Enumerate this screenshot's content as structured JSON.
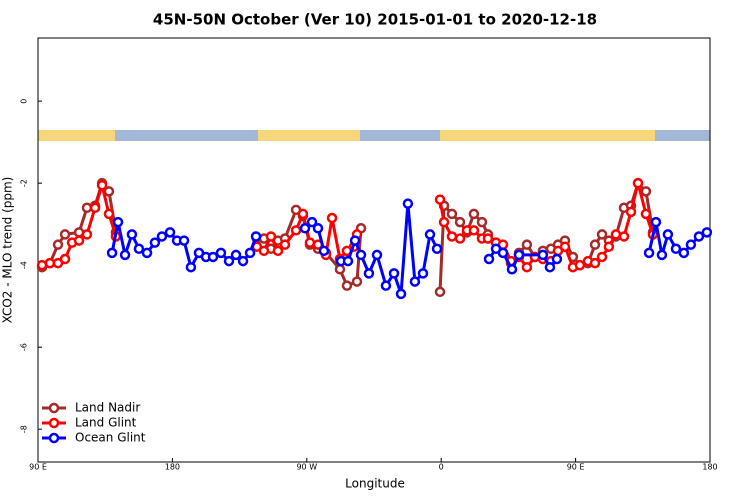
{
  "chart_data": {
    "type": "line",
    "title": "45N-50N October (Ver 10)   2015-01-01 to 2020-12-18",
    "x_label": "Longitude",
    "y_label": "XCO2 - MLO trend (ppm)",
    "xlim": [
      90,
      540
    ],
    "ylim": [
      -8.8,
      1.54
    ],
    "xticks": [
      {
        "value": 90,
        "label": "90 E"
      },
      180,
      {
        "value": 270,
        "label": "90 W"
      },
      {
        "value": 360,
        "label": "0"
      },
      {
        "value": 450,
        "label": "90 E"
      },
      {
        "value": 540,
        "label": "180"
      }
    ],
    "yticks": [
      0,
      -2,
      -4,
      -6,
      -8
    ],
    "legend": "bottom-left",
    "series": [
      {
        "name": "Land Nadir",
        "color": "#a52a2a",
        "x": [
          92.7,
          98.0,
          103.4,
          108.1,
          117.5,
          122.8,
          128.2,
          132.9,
          137.5,
          142.2,
          null,
          236.6,
          241.3,
          246.0,
          250.7,
          255.4,
          262.8,
          267.4,
          272.1,
          277.5,
          282.8,
          292.2,
          296.9,
          303.6,
          306.3,
          null,
          359.2,
          361.9,
          367.2,
          372.6,
          377.3,
          381.9,
          387.3,
          391.3,
          396.7,
          401.4,
          406.7,
          412.1,
          417.4,
          422.8,
          428.1,
          433.5,
          438.2,
          442.9,
          448.2,
          452.9,
          458.3,
          463.0,
          467.7,
          472.3,
          477.0,
          482.4,
          487.1,
          491.8,
          497.1,
          501.8
        ],
        "values": [
          -4.05,
          -3.95,
          -3.5,
          -3.25,
          -3.2,
          -2.6,
          -2.55,
          -2.0,
          -2.2,
          -3.2,
          null,
          -3.35,
          -3.35,
          -3.6,
          -3.4,
          -3.35,
          -2.65,
          -2.8,
          -3.5,
          -3.6,
          -3.7,
          -4.1,
          -4.5,
          -4.4,
          -3.1,
          null,
          -4.65,
          -2.55,
          -2.75,
          -2.95,
          -3.2,
          -2.75,
          -2.95,
          -3.25,
          -3.45,
          -3.7,
          -3.95,
          -3.7,
          -3.5,
          -3.8,
          -3.65,
          -3.6,
          -3.5,
          -3.4,
          -3.8,
          -4.0,
          -3.95,
          -3.5,
          -3.25,
          -3.4,
          -3.3,
          -2.6,
          -2.55,
          -2.0,
          -2.2,
          -3.2
        ]
      },
      {
        "name": "Land Glint",
        "color": "#ff0000",
        "x": [
          92.7,
          98.0,
          103.4,
          108.1,
          112.8,
          117.5,
          122.8,
          128.2,
          132.9,
          137.5,
          142.2,
          null,
          236.6,
          241.3,
          246.0,
          250.7,
          255.4,
          262.8,
          267.4,
          272.1,
          277.5,
          282.8,
          286.9,
          292.2,
          296.9,
          301.6,
          303.6,
          null,
          359.2,
          361.9,
          367.2,
          372.6,
          377.3,
          381.9,
          387.3,
          391.3,
          396.7,
          401.4,
          406.7,
          412.1,
          417.4,
          422.8,
          428.1,
          433.5,
          438.2,
          442.9,
          448.2,
          452.9,
          458.3,
          463.0,
          467.7,
          472.3,
          477.0,
          482.4,
          487.1,
          491.8,
          497.1,
          501.8
        ],
        "values": [
          -4.0,
          -3.95,
          -3.95,
          -3.85,
          -3.45,
          -3.4,
          -3.25,
          -2.6,
          -2.05,
          -2.75,
          -3.3,
          null,
          -3.55,
          -3.65,
          -3.3,
          -3.65,
          -3.5,
          -3.15,
          -2.75,
          -3.45,
          -3.5,
          -3.75,
          -2.85,
          -3.85,
          -3.65,
          -3.55,
          -3.25,
          null,
          -2.4,
          -2.95,
          -3.3,
          -3.35,
          -3.15,
          -3.15,
          -3.35,
          -3.35,
          -3.45,
          -3.5,
          -3.9,
          -3.8,
          -4.05,
          -3.8,
          -3.85,
          -3.9,
          -3.65,
          -3.55,
          -4.05,
          -4.0,
          -3.9,
          -3.95,
          -3.8,
          -3.55,
          -3.25,
          -3.3,
          -2.7,
          -2.0,
          -2.75,
          -3.25
        ]
      },
      {
        "name": "Ocean Glint",
        "color": "#0000ff",
        "x": [
          139.6,
          143.6,
          148.3,
          152.9,
          157.6,
          163.0,
          168.3,
          173.0,
          178.4,
          183.1,
          187.8,
          192.4,
          197.8,
          202.5,
          207.2,
          212.5,
          217.9,
          222.6,
          227.3,
          232.0,
          236.0,
          null,
          268.8,
          273.5,
          277.5,
          281.5,
          null,
          292.9,
          297.6,
          302.3,
          306.3,
          311.6,
          317.0,
          323.0,
          328.4,
          333.1,
          337.7,
          342.4,
          347.8,
          352.5,
          357.2,
          null,
          392.0,
          396.7,
          401.4,
          407.4,
          412.1,
          428.1,
          432.8,
          437.5,
          null,
          499.2,
          503.8,
          507.8,
          511.8,
          517.2,
          522.5,
          527.2,
          532.6,
          537.9
        ],
        "values": [
          -3.7,
          -2.95,
          -3.75,
          -3.25,
          -3.6,
          -3.7,
          -3.45,
          -3.3,
          -3.2,
          -3.4,
          -3.4,
          -4.05,
          -3.7,
          -3.8,
          -3.8,
          -3.7,
          -3.9,
          -3.75,
          -3.9,
          -3.7,
          -3.3,
          null,
          -3.1,
          -2.95,
          -3.1,
          -3.65,
          null,
          -3.9,
          -3.9,
          -3.4,
          -3.75,
          -4.2,
          -3.75,
          -4.5,
          -4.2,
          -4.7,
          -2.5,
          -4.4,
          -4.2,
          -3.25,
          -3.6,
          null,
          -3.85,
          -3.6,
          -3.7,
          -4.1,
          -3.75,
          -3.75,
          -4.05,
          -3.85,
          null,
          -3.7,
          -2.95,
          -3.75,
          -3.25,
          -3.6,
          -3.7,
          -3.5,
          -3.3,
          -3.2
        ]
      }
    ]
  }
}
